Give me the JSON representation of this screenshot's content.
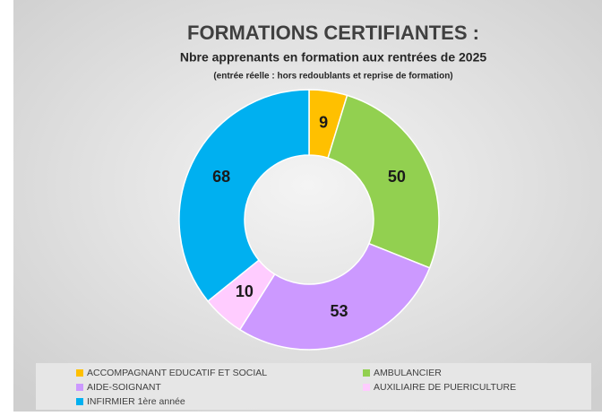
{
  "chart_data": {
    "type": "donut",
    "title": "FORMATIONS CERTIFIANTES :",
    "subtitle": "Nbre apprenants en formation aux rentrées de 2025",
    "note": "(entrée réelle : hors redoublants et reprise de formation)",
    "categories": [
      "ACCOMPAGNANT EDUCATIF ET SOCIAL",
      "AMBULANCIER",
      "AIDE-SOIGNANT",
      "AUXILIAIRE DE PUERICULTURE",
      "INFIRMIER 1ère année"
    ],
    "values": [
      9,
      50,
      53,
      10,
      68
    ],
    "colors": [
      "#ffc000",
      "#92d050",
      "#cc99ff",
      "#ffccff",
      "#00b0f0"
    ],
    "legend": "bottom"
  }
}
